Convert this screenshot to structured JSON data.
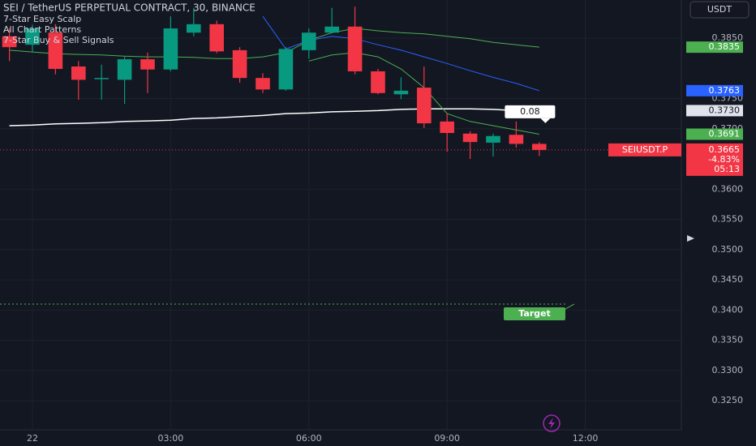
{
  "chart_data": {
    "type": "candlestick",
    "title": "SEI / TetherUS PERPETUAL CONTRACT, 30, BINANCE",
    "indicators": [
      "7-Star Easy Scalp",
      "All Chart Patterns",
      "7-Star Buy & Sell Signals"
    ],
    "currency": "USDT",
    "up_color": "#089981",
    "down_color": "#f23645",
    "x": [
      -0.5,
      0,
      0.5,
      1,
      1.5,
      2,
      2.5,
      3,
      3.5,
      4,
      4.5,
      5,
      5.5,
      6,
      6.5,
      7,
      7.5,
      8,
      8.5,
      9,
      9.5,
      10,
      10.5,
      11
    ],
    "open": [
      0.3853,
      0.3839,
      0.3859,
      0.3803,
      0.3782,
      0.3781,
      0.3815,
      0.3798,
      0.3859,
      0.3873,
      0.383,
      0.3784,
      0.3765,
      0.383,
      0.3859,
      0.3869,
      0.3795,
      0.3757,
      0.3768,
      0.3712,
      0.3692,
      0.3677,
      0.369,
      0.3675
    ],
    "high": [
      0.3866,
      0.3872,
      0.3873,
      0.3812,
      0.3806,
      0.3819,
      0.3826,
      0.3886,
      0.39,
      0.3879,
      0.3835,
      0.3792,
      0.3835,
      0.3866,
      0.39,
      0.3902,
      0.3799,
      0.3785,
      0.3803,
      0.3725,
      0.3696,
      0.3692,
      0.3712,
      0.3678
    ],
    "low": [
      0.3812,
      0.3826,
      0.379,
      0.3748,
      0.3748,
      0.3741,
      0.3759,
      0.3795,
      0.3853,
      0.3825,
      0.3776,
      0.3759,
      0.3763,
      0.3816,
      0.3858,
      0.379,
      0.3757,
      0.3749,
      0.3701,
      0.3662,
      0.365,
      0.3654,
      0.3669,
      0.3655
    ],
    "close": [
      0.3835,
      0.3866,
      0.3799,
      0.3781,
      0.3784,
      0.3815,
      0.3798,
      0.3866,
      0.3873,
      0.3828,
      0.3784,
      0.3765,
      0.3832,
      0.3859,
      0.3869,
      0.3795,
      0.3759,
      0.3763,
      0.3709,
      0.3693,
      0.3678,
      0.3688,
      0.3675,
      0.3665
    ],
    "series": [
      {
        "color": "#ffffff",
        "values": [
          0.3705,
          0.3706,
          0.3708,
          0.3709,
          0.371,
          0.3712,
          0.3713,
          0.3714,
          0.3717,
          0.3718,
          0.372,
          0.3722,
          0.3725,
          0.3726,
          0.3728,
          0.3729,
          0.373,
          0.3732,
          0.3733,
          0.3733,
          0.3733,
          0.3732,
          0.373,
          0.373
        ]
      },
      {
        "color": "#4caf50",
        "values": [
          0.383,
          0.3827,
          0.3824,
          0.3823,
          0.3822,
          0.382,
          0.3819,
          0.3819,
          0.3818,
          0.3816,
          0.3816,
          0.3819,
          0.3826,
          0.3846,
          0.3859,
          0.3866,
          0.3862,
          0.3859,
          0.3857,
          0.3853,
          0.3849,
          0.3843,
          0.3839,
          0.3835
        ]
      },
      {
        "color": "#4caf50",
        "values": [
          null,
          null,
          null,
          null,
          null,
          null,
          null,
          null,
          null,
          null,
          null,
          null,
          null,
          0.3812,
          0.3822,
          0.3826,
          0.3819,
          0.3799,
          0.3768,
          0.3725,
          0.3712,
          0.3705,
          0.3698,
          0.3691
        ]
      },
      {
        "color": "#2962ff",
        "values": [
          null,
          null,
          null,
          null,
          null,
          null,
          null,
          null,
          null,
          null,
          null,
          0.3886,
          0.3832,
          0.3846,
          0.3853,
          0.3849,
          0.3839,
          0.383,
          0.3819,
          0.3808,
          0.3796,
          0.3785,
          0.3775,
          0.3763
        ]
      }
    ],
    "price_labels": [
      {
        "value": 0.3835,
        "label": "0.3835",
        "color": "#4caf50"
      },
      {
        "value": 0.3763,
        "label": "0.3763",
        "color": "#2962ff"
      },
      {
        "value": 0.373,
        "label": "0.3730",
        "color": "#e0e3eb"
      },
      {
        "value": 0.3691,
        "label": "0.3691",
        "color": "#4caf50"
      }
    ],
    "last_price": {
      "name": "SEIUSDT.P",
      "value": 0.3665,
      "label": "0.3665",
      "change": -4.83,
      "change_label": "-4.83%",
      "countdown": "05:13",
      "color": "#f23645"
    },
    "annotation": "0.08",
    "target": {
      "label": "Target",
      "value": 0.341,
      "color": "#4caf50"
    },
    "xlim": [
      -0.704,
      14.085
    ],
    "ylim": [
      0.3202,
      0.3913
    ],
    "xticks": [
      {
        "value": 0,
        "label": "22"
      },
      {
        "value": 3,
        "label": "03:00"
      },
      {
        "value": 6,
        "label": "06:00"
      },
      {
        "value": 9,
        "label": "09:00"
      },
      {
        "value": 12,
        "label": "12:00"
      }
    ],
    "yticks": [
      {
        "value": 0.385,
        "label": "0.3850"
      },
      {
        "value": 0.375,
        "label": "0.3750"
      },
      {
        "value": 0.37,
        "label": "0.3700"
      },
      {
        "value": 0.36,
        "label": "0.3600"
      },
      {
        "value": 0.355,
        "label": "0.3550"
      },
      {
        "value": 0.35,
        "label": "0.3500"
      },
      {
        "value": 0.345,
        "label": "0.3450"
      },
      {
        "value": 0.34,
        "label": "0.3400"
      },
      {
        "value": 0.335,
        "label": "0.3350"
      },
      {
        "value": 0.33,
        "label": "0.3300"
      },
      {
        "value": 0.325,
        "label": "0.3250"
      }
    ],
    "grid": true
  }
}
